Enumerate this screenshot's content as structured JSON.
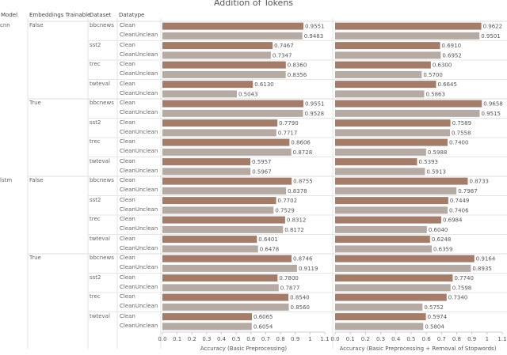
{
  "chart_data": {
    "type": "bar",
    "title": "Addition of Tokens",
    "headers": {
      "model": "Model",
      "embeddings": "Embeddings Trainable",
      "dataset": "Dataset",
      "datatype": "Datatype"
    },
    "xlabels": [
      "Accuracy (Basic Preprocessing)",
      "Accuracy (Basic Preprocessing + Removal of Stopwords)"
    ],
    "xlim": [
      0,
      1.1
    ],
    "ticks": [
      "0.0",
      "0.1",
      "0.2",
      "0.3",
      "0.4",
      "0.5",
      "0.6",
      "0.7",
      "0.8",
      "0.9",
      "1",
      "1.1"
    ],
    "colors": {
      "clean": "#a47d6a",
      "cleanunclean": "#b6aba4"
    },
    "rows": [
      {
        "model": "cnn",
        "emb": "False",
        "ds": "bbcnews",
        "dt": "Clean",
        "v1": 0.9551,
        "l1": "0.9551",
        "v2": 0.9622,
        "l2": "0.9622"
      },
      {
        "model": "",
        "emb": "",
        "ds": "",
        "dt": "CleanUnclean",
        "v1": 0.9483,
        "l1": "0.9483",
        "v2": 0.9501,
        "l2": "0.9501"
      },
      {
        "model": "",
        "emb": "",
        "ds": "sst2",
        "dt": "Clean",
        "v1": 0.7467,
        "l1": "0.7467",
        "v2": 0.691,
        "l2": "0.6910"
      },
      {
        "model": "",
        "emb": "",
        "ds": "",
        "dt": "CleanUnclean",
        "v1": 0.7347,
        "l1": "0.7347",
        "v2": 0.6952,
        "l2": "0.6952"
      },
      {
        "model": "",
        "emb": "",
        "ds": "trec",
        "dt": "Clean",
        "v1": 0.836,
        "l1": "0.8360",
        "v2": 0.63,
        "l2": "0.6300"
      },
      {
        "model": "",
        "emb": "",
        "ds": "",
        "dt": "CleanUnclean",
        "v1": 0.8356,
        "l1": "0.8356",
        "v2": 0.57,
        "l2": "0.5700"
      },
      {
        "model": "",
        "emb": "",
        "ds": "twteval",
        "dt": "Clean",
        "v1": 0.613,
        "l1": "0.6130",
        "v2": 0.6645,
        "l2": "0.6645"
      },
      {
        "model": "",
        "emb": "",
        "ds": "",
        "dt": "CleanUnclean",
        "v1": 0.5043,
        "l1": "0.5043",
        "v2": 0.5863,
        "l2": "0.5863"
      },
      {
        "model": "",
        "emb": "True",
        "ds": "bbcnews",
        "dt": "Clean",
        "v1": 0.9551,
        "l1": "0.9551",
        "v2": 0.9658,
        "l2": "0.9658"
      },
      {
        "model": "",
        "emb": "",
        "ds": "",
        "dt": "CleanUnclean",
        "v1": 0.9528,
        "l1": "0.9528",
        "v2": 0.9515,
        "l2": "0.9515"
      },
      {
        "model": "",
        "emb": "",
        "ds": "sst2",
        "dt": "Clean",
        "v1": 0.779,
        "l1": "0.7790",
        "v2": 0.7589,
        "l2": "0.7589"
      },
      {
        "model": "",
        "emb": "",
        "ds": "",
        "dt": "CleanUnclean",
        "v1": 0.7717,
        "l1": "0.7717",
        "v2": 0.7558,
        "l2": "0.7558"
      },
      {
        "model": "",
        "emb": "",
        "ds": "trec",
        "dt": "Clean",
        "v1": 0.8606,
        "l1": "0.8606",
        "v2": 0.74,
        "l2": "0.7400"
      },
      {
        "model": "",
        "emb": "",
        "ds": "",
        "dt": "CleanUnclean",
        "v1": 0.8728,
        "l1": "0.8728",
        "v2": 0.5988,
        "l2": "0.5988"
      },
      {
        "model": "",
        "emb": "",
        "ds": "twteval",
        "dt": "Clean",
        "v1": 0.5957,
        "l1": "0.5957",
        "v2": 0.5393,
        "l2": "0.5393"
      },
      {
        "model": "",
        "emb": "",
        "ds": "",
        "dt": "CleanUnclean",
        "v1": 0.5967,
        "l1": "0.5967",
        "v2": 0.5913,
        "l2": "0.5913"
      },
      {
        "model": "lstm",
        "emb": "False",
        "ds": "bbcnews",
        "dt": "Clean",
        "v1": 0.8755,
        "l1": "0.8755",
        "v2": 0.8733,
        "l2": "0.8733"
      },
      {
        "model": "",
        "emb": "",
        "ds": "",
        "dt": "CleanUnclean",
        "v1": 0.8378,
        "l1": "0.8378",
        "v2": 0.7987,
        "l2": "0.7987"
      },
      {
        "model": "",
        "emb": "",
        "ds": "sst2",
        "dt": "Clean",
        "v1": 0.7702,
        "l1": "0.7702",
        "v2": 0.7449,
        "l2": "0.7449"
      },
      {
        "model": "",
        "emb": "",
        "ds": "",
        "dt": "CleanUnclean",
        "v1": 0.7529,
        "l1": "0.7529",
        "v2": 0.7406,
        "l2": "0.7406"
      },
      {
        "model": "",
        "emb": "",
        "ds": "trec",
        "dt": "Clean",
        "v1": 0.8312,
        "l1": "0.8312",
        "v2": 0.6984,
        "l2": "0.6984"
      },
      {
        "model": "",
        "emb": "",
        "ds": "",
        "dt": "CleanUnclean",
        "v1": 0.8172,
        "l1": "0.8172",
        "v2": 0.604,
        "l2": "0.6040"
      },
      {
        "model": "",
        "emb": "",
        "ds": "twteval",
        "dt": "Clean",
        "v1": 0.6401,
        "l1": "0.6401",
        "v2": 0.6248,
        "l2": "0.6248"
      },
      {
        "model": "",
        "emb": "",
        "ds": "",
        "dt": "CleanUnclean",
        "v1": 0.6478,
        "l1": "0.6478",
        "v2": 0.6359,
        "l2": "0.6359"
      },
      {
        "model": "",
        "emb": "True",
        "ds": "bbcnews",
        "dt": "Clean",
        "v1": 0.8746,
        "l1": "0.8746",
        "v2": 0.9164,
        "l2": "0.9164"
      },
      {
        "model": "",
        "emb": "",
        "ds": "",
        "dt": "CleanUnclean",
        "v1": 0.9119,
        "l1": "0.9119",
        "v2": 0.8935,
        "l2": "0.8935"
      },
      {
        "model": "",
        "emb": "",
        "ds": "sst2",
        "dt": "Clean",
        "v1": 0.78,
        "l1": "0.7800",
        "v2": 0.774,
        "l2": "0.7740"
      },
      {
        "model": "",
        "emb": "",
        "ds": "",
        "dt": "CleanUnclean",
        "v1": 0.7877,
        "l1": "0.7877",
        "v2": 0.7598,
        "l2": "0.7598"
      },
      {
        "model": "",
        "emb": "",
        "ds": "trec",
        "dt": "Clean",
        "v1": 0.854,
        "l1": "0.8540",
        "v2": 0.734,
        "l2": "0.7340"
      },
      {
        "model": "",
        "emb": "",
        "ds": "",
        "dt": "CleanUnclean",
        "v1": 0.856,
        "l1": "0.8560",
        "v2": 0.5752,
        "l2": "0.5752"
      },
      {
        "model": "",
        "emb": "",
        "ds": "twteval",
        "dt": "Clean",
        "v1": 0.6065,
        "l1": "0.6065",
        "v2": 0.5974,
        "l2": "0.5974"
      },
      {
        "model": "",
        "emb": "",
        "ds": "",
        "dt": "CleanUnclean",
        "v1": 0.6054,
        "l1": "0.6054",
        "v2": 0.5804,
        "l2": "0.5804"
      }
    ]
  }
}
